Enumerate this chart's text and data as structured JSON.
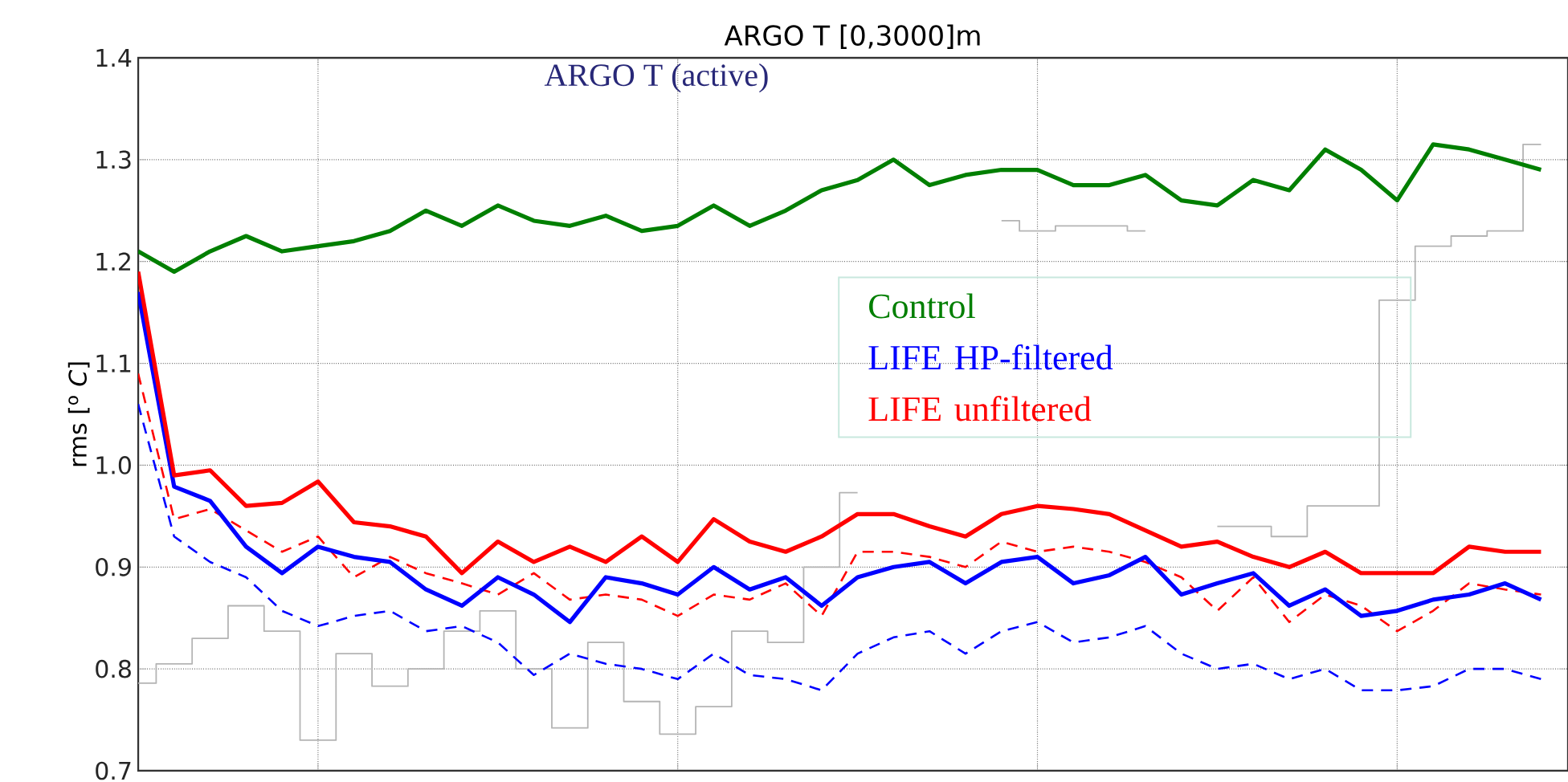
{
  "chart_data": {
    "type": "line",
    "title": "ARGO T [0,3000]m",
    "ylabel": "rms [$^{o}$ *C*]",
    "annotations": [
      "ARGO T (active)"
    ],
    "categories": [
      null,
      null,
      null,
      null,
      null,
      null,
      null,
      null,
      null,
      null,
      null,
      null,
      null,
      null,
      null,
      null,
      null,
      null,
      null,
      null,
      null,
      null,
      null,
      null,
      null,
      null,
      null,
      null,
      null,
      null,
      null,
      null,
      null,
      null,
      null,
      null,
      null,
      null,
      null,
      null
    ],
    "ylim": [
      0.7,
      1.4
    ],
    "yticks": [
      0.7,
      0.8,
      0.9,
      {
        "value": 1.0,
        "label": "1.0"
      },
      1.1,
      1.2,
      1.3,
      1.4
    ],
    "grid": true,
    "marker": "none",
    "series": [
      {
        "type": "step",
        "color": "#b4b4b4",
        "values": [
          0.786,
          0.805,
          0.83,
          0.862,
          0.837,
          0.73,
          0.815,
          0.783,
          0.8,
          0.837,
          0.857,
          0.8,
          0.742,
          0.826,
          0.768,
          0.736,
          0.763,
          0.837,
          0.826,
          0.9,
          0.973,
          null,
          null,
          null,
          1.24,
          1.23,
          1.235,
          1.235,
          1.23,
          null,
          0.94,
          0.94,
          0.93,
          0.96,
          0.96,
          1.162,
          1.215,
          1.225,
          1.23,
          1.315
        ]
      },
      {
        "color": "#0000ff",
        "line_style": "dashed",
        "values": [
          1.06,
          0.93,
          0.905,
          0.89,
          0.857,
          0.842,
          0.852,
          0.857,
          0.837,
          0.842,
          0.826,
          0.794,
          0.815,
          0.805,
          0.8,
          0.79,
          0.815,
          0.794,
          0.79,
          0.779,
          0.815,
          0.831,
          0.837,
          0.815,
          0.837,
          0.846,
          0.826,
          0.831,
          0.842,
          0.815,
          0.8,
          0.805,
          0.79,
          0.8,
          0.779,
          0.779,
          0.783,
          0.8,
          0.8,
          0.79
        ]
      },
      {
        "color": "#ff0000",
        "line_style": "dashed",
        "values": [
          1.09,
          0.947,
          0.957,
          0.936,
          0.915,
          0.93,
          0.89,
          0.91,
          0.894,
          0.884,
          0.873,
          0.894,
          0.868,
          0.873,
          0.868,
          0.852,
          0.873,
          0.868,
          0.884,
          0.852,
          0.915,
          0.915,
          0.91,
          0.9,
          0.925,
          0.915,
          0.92,
          0.915,
          0.905,
          0.89,
          0.857,
          0.89,
          0.846,
          0.873,
          0.862,
          0.837,
          0.857,
          0.884,
          0.878,
          0.873
        ]
      },
      {
        "name": "Control",
        "color": "#007f00",
        "values": [
          1.21,
          1.19,
          1.21,
          1.225,
          1.21,
          1.215,
          1.22,
          1.23,
          1.25,
          1.235,
          1.255,
          1.24,
          1.235,
          1.245,
          1.23,
          1.235,
          1.255,
          1.235,
          1.25,
          1.27,
          1.28,
          1.3,
          1.275,
          1.285,
          1.29,
          1.29,
          1.275,
          1.275,
          1.285,
          1.26,
          1.255,
          1.28,
          1.27,
          1.31,
          1.29,
          1.26,
          1.315,
          1.31,
          1.3,
          1.29
        ]
      },
      {
        "name": "LIFE HP-filtered",
        "color": "#0000ff",
        "values": [
          1.17,
          0.979,
          0.965,
          0.92,
          0.894,
          0.92,
          0.91,
          0.905,
          0.878,
          0.862,
          0.89,
          0.873,
          0.846,
          0.89,
          0.884,
          0.873,
          0.9,
          0.878,
          0.89,
          0.862,
          0.89,
          0.9,
          0.905,
          0.884,
          0.905,
          0.91,
          0.884,
          0.892,
          0.91,
          0.873,
          0.884,
          0.894,
          0.862,
          0.878,
          0.852,
          0.857,
          0.868,
          0.873,
          0.884,
          0.868
        ]
      },
      {
        "name": "LIFE unfiltered",
        "color": "#ff0000",
        "values": [
          1.19,
          0.99,
          0.995,
          0.96,
          0.963,
          0.984,
          0.944,
          0.94,
          0.93,
          0.894,
          0.925,
          0.905,
          0.92,
          0.905,
          0.93,
          0.905,
          0.947,
          0.925,
          0.915,
          0.93,
          0.952,
          0.952,
          0.94,
          0.93,
          0.952,
          0.96,
          0.957,
          0.952,
          0.936,
          0.92,
          0.925,
          0.91,
          0.9,
          0.915,
          0.894,
          0.894,
          0.894,
          0.92,
          0.915,
          0.915
        ]
      }
    ]
  }
}
